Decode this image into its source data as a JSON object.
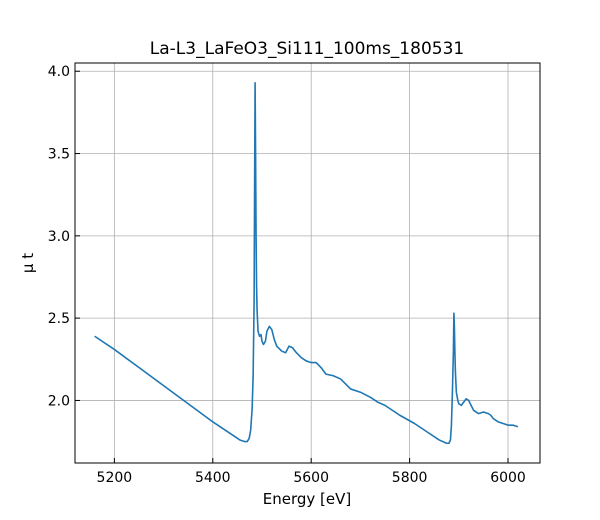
{
  "chart_data": {
    "type": "line",
    "title": "La-L3_LaFeO3_Si111_100ms_180531",
    "xlabel": "Energy [eV]",
    "ylabel": "μ t",
    "xlim": [
      5120,
      6065
    ],
    "ylim": [
      1.62,
      4.05
    ],
    "xticks": [
      5200,
      5400,
      5600,
      5800,
      6000
    ],
    "yticks": [
      2.0,
      2.5,
      3.0,
      3.5,
      4.0
    ],
    "xtick_labels": [
      "5200",
      "5400",
      "5600",
      "5800",
      "6000"
    ],
    "ytick_labels": [
      "2.0",
      "2.5",
      "3.0",
      "3.5",
      "4.0"
    ],
    "grid": true,
    "line_color": "#1f77b4",
    "series": [
      {
        "x": [
          5160,
          5200,
          5250,
          5300,
          5350,
          5400,
          5430,
          5455,
          5465,
          5470,
          5474,
          5477,
          5480,
          5482,
          5484,
          5485,
          5486,
          5487,
          5488,
          5489,
          5490,
          5492,
          5495,
          5498,
          5500,
          5503,
          5507,
          5510,
          5515,
          5520,
          5525,
          5530,
          5540,
          5548,
          5555,
          5562,
          5570,
          5580,
          5590,
          5600,
          5610,
          5620,
          5630,
          5645,
          5660,
          5670,
          5680,
          5700,
          5720,
          5735,
          5750,
          5780,
          5810,
          5840,
          5860,
          5875,
          5880,
          5883,
          5885,
          5887,
          5889,
          5890,
          5891,
          5892,
          5893,
          5895,
          5898,
          5900,
          5905,
          5910,
          5915,
          5920,
          5925,
          5930,
          5935,
          5940,
          5950,
          5960,
          5965,
          5970,
          5980,
          5990,
          6000,
          6010,
          6020
        ],
        "y": [
          2.39,
          2.31,
          2.2,
          2.09,
          1.98,
          1.87,
          1.81,
          1.76,
          1.75,
          1.75,
          1.77,
          1.82,
          1.95,
          2.15,
          2.6,
          3.3,
          3.93,
          3.5,
          3.0,
          2.7,
          2.55,
          2.42,
          2.39,
          2.4,
          2.36,
          2.34,
          2.36,
          2.42,
          2.45,
          2.43,
          2.37,
          2.33,
          2.3,
          2.29,
          2.33,
          2.32,
          2.29,
          2.26,
          2.24,
          2.23,
          2.23,
          2.2,
          2.16,
          2.15,
          2.13,
          2.1,
          2.07,
          2.05,
          2.02,
          1.99,
          1.97,
          1.91,
          1.86,
          1.8,
          1.76,
          1.74,
          1.74,
          1.76,
          1.85,
          2.05,
          2.3,
          2.53,
          2.45,
          2.3,
          2.18,
          2.05,
          2.0,
          1.98,
          1.97,
          1.99,
          2.01,
          2.0,
          1.97,
          1.94,
          1.93,
          1.92,
          1.93,
          1.92,
          1.91,
          1.89,
          1.87,
          1.86,
          1.85,
          1.85,
          1.84
        ]
      }
    ]
  }
}
